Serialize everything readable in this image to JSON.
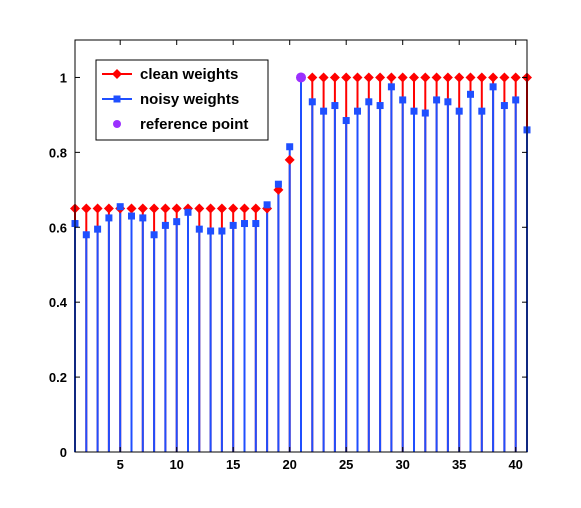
{
  "chart_data": {
    "type": "stem",
    "title": "",
    "xlabel": "",
    "ylabel": "",
    "xlim": [
      1,
      41
    ],
    "ylim": [
      0,
      1.1
    ],
    "xticks": [
      5,
      10,
      15,
      20,
      25,
      30,
      35,
      40
    ],
    "yticks": [
      0,
      0.2,
      0.4,
      0.6,
      0.8,
      1
    ],
    "xtick_labels": [
      "5",
      "10",
      "15",
      "20",
      "25",
      "30",
      "35",
      "40"
    ],
    "ytick_labels": [
      "0",
      "0.2",
      "0.4",
      "0.6",
      "0.8",
      "1"
    ],
    "legend_position": "top-left",
    "x": [
      1,
      2,
      3,
      4,
      5,
      6,
      7,
      8,
      9,
      10,
      11,
      12,
      13,
      14,
      15,
      16,
      17,
      18,
      19,
      20,
      21,
      22,
      23,
      24,
      25,
      26,
      27,
      28,
      29,
      30,
      31,
      32,
      33,
      34,
      35,
      36,
      37,
      38,
      39,
      40,
      41
    ],
    "series": [
      {
        "name": "clean weights",
        "color": "#ff0000",
        "marker": "diamond",
        "values": [
          0.65,
          0.65,
          0.65,
          0.65,
          0.65,
          0.65,
          0.65,
          0.65,
          0.65,
          0.65,
          0.65,
          0.65,
          0.65,
          0.65,
          0.65,
          0.65,
          0.65,
          0.65,
          0.7,
          0.78,
          1.0,
          1.0,
          1.0,
          1.0,
          1.0,
          1.0,
          1.0,
          1.0,
          1.0,
          1.0,
          1.0,
          1.0,
          1.0,
          1.0,
          1.0,
          1.0,
          1.0,
          1.0,
          1.0,
          1.0,
          1.0
        ]
      },
      {
        "name": "noisy weights",
        "color": "#1f4fff",
        "marker": "square",
        "values": [
          0.61,
          0.58,
          0.595,
          0.625,
          0.655,
          0.63,
          0.625,
          0.58,
          0.605,
          0.615,
          0.64,
          0.595,
          0.59,
          0.59,
          0.605,
          0.61,
          0.61,
          0.66,
          0.715,
          0.815,
          1.0,
          0.935,
          0.91,
          0.925,
          0.885,
          0.91,
          0.935,
          0.925,
          0.975,
          0.94,
          0.91,
          0.905,
          0.94,
          0.935,
          0.91,
          0.955,
          0.91,
          0.975,
          0.925,
          0.94,
          0.86
        ]
      },
      {
        "name": "reference point",
        "color": "#9b30ff",
        "marker": "circle",
        "x": [
          21
        ],
        "values": [
          1.0
        ]
      }
    ]
  }
}
